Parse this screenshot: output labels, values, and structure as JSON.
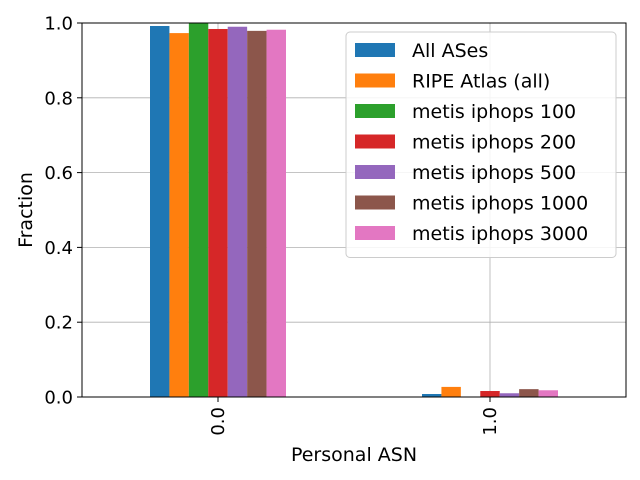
{
  "chart_data": {
    "type": "bar",
    "xlabel": "Personal ASN",
    "ylabel": "Fraction",
    "categories": [
      "0.0",
      "1.0"
    ],
    "ylim": [
      0.0,
      1.0
    ],
    "yticks": [
      "0.0",
      "0.2",
      "0.4",
      "0.6",
      "0.8",
      "1.0"
    ],
    "grid": true,
    "legend_position": "top-right",
    "series": [
      {
        "name": "All ASes",
        "color": "#1f77b4",
        "values": [
          0.992,
          0.008
        ]
      },
      {
        "name": "RIPE Atlas (all)",
        "color": "#ff7f0e",
        "values": [
          0.973,
          0.027
        ]
      },
      {
        "name": "metis iphops 100",
        "color": "#2ca02c",
        "values": [
          1.0,
          0.0
        ]
      },
      {
        "name": "metis iphops 200",
        "color": "#d62728",
        "values": [
          0.984,
          0.016
        ]
      },
      {
        "name": "metis iphops 500",
        "color": "#9467bd",
        "values": [
          0.99,
          0.01
        ]
      },
      {
        "name": "metis iphops 1000",
        "color": "#8c564b",
        "values": [
          0.979,
          0.021
        ]
      },
      {
        "name": "metis iphops 3000",
        "color": "#e377c2",
        "values": [
          0.982,
          0.018
        ]
      }
    ]
  }
}
